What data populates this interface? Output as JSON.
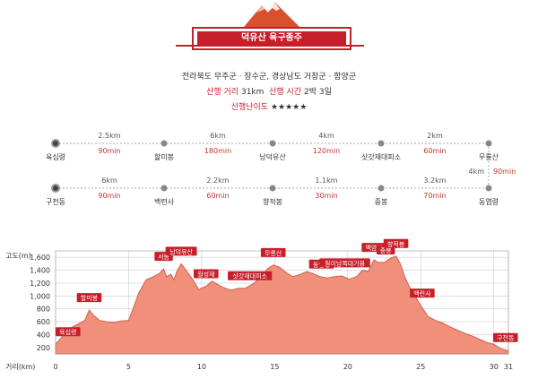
{
  "header": {
    "title": "덕유산 육구종주",
    "region": "전라북도 무주군 · 장수군, 경상남도 거창군 · 함양군",
    "distance_label": "산행 거리",
    "distance_value": "31km",
    "time_label": "산행 시간",
    "time_value": "2박 3일",
    "difficulty_label": "산행난이도",
    "difficulty_stars": "★★★★★"
  },
  "route": {
    "row1": {
      "points": [
        "육십령",
        "할미봉",
        "남덕유산",
        "삿갓재대피소",
        "무룡산"
      ],
      "distances": [
        "2.5km",
        "6km",
        "4km",
        "2km"
      ],
      "times": [
        "90min",
        "180min",
        "120min",
        "60min"
      ]
    },
    "connector": {
      "distance": "4km",
      "time": "90min"
    },
    "row2": {
      "points": [
        "구천동",
        "백련사",
        "향적봉",
        "중봉",
        "동엽령"
      ],
      "distances": [
        "6km",
        "2.2km",
        "1.1km",
        "3.2km"
      ],
      "times": [
        "90min",
        "60min",
        "30min",
        "70min"
      ]
    }
  },
  "chart_data": {
    "type": "area",
    "ylabel": "고도(m)",
    "xlabel": "거리(km)",
    "ylim": [
      0,
      1700
    ],
    "xlim": [
      0,
      31
    ],
    "yticks": [
      "200",
      "400",
      "600",
      "800",
      "1,000",
      "1,200",
      "1,400",
      "1,600"
    ],
    "xticks": [
      "0",
      "5",
      "10",
      "15",
      "20",
      "25",
      "30",
      "31"
    ],
    "grid": true,
    "profile": [
      [
        0,
        250
      ],
      [
        0.5,
        380
      ],
      [
        1,
        500
      ],
      [
        1.5,
        560
      ],
      [
        2,
        620
      ],
      [
        2.3,
        780
      ],
      [
        2.6,
        700
      ],
      [
        3,
        620
      ],
      [
        3.5,
        600
      ],
      [
        4,
        590
      ],
      [
        4.5,
        610
      ],
      [
        5,
        620
      ],
      [
        5.3,
        800
      ],
      [
        5.7,
        1050
      ],
      [
        6.2,
        1250
      ],
      [
        6.7,
        1300
      ],
      [
        7.1,
        1350
      ],
      [
        7.4,
        1420
      ],
      [
        7.6,
        1300
      ],
      [
        7.9,
        1340
      ],
      [
        8.1,
        1250
      ],
      [
        8.3,
        1380
      ],
      [
        8.6,
        1500
      ],
      [
        9,
        1380
      ],
      [
        9.4,
        1250
      ],
      [
        9.8,
        1100
      ],
      [
        10.3,
        1150
      ],
      [
        10.7,
        1230
      ],
      [
        11.1,
        1180
      ],
      [
        11.5,
        1130
      ],
      [
        12,
        1090
      ],
      [
        12.5,
        1120
      ],
      [
        13,
        1120
      ],
      [
        13.6,
        1200
      ],
      [
        14.1,
        1300
      ],
      [
        14.5,
        1420
      ],
      [
        14.9,
        1480
      ],
      [
        15.3,
        1450
      ],
      [
        15.7,
        1380
      ],
      [
        16.2,
        1300
      ],
      [
        16.7,
        1330
      ],
      [
        17.2,
        1380
      ],
      [
        17.6,
        1350
      ],
      [
        18.1,
        1300
      ],
      [
        18.6,
        1280
      ],
      [
        19.1,
        1300
      ],
      [
        19.6,
        1310
      ],
      [
        20.1,
        1260
      ],
      [
        20.6,
        1300
      ],
      [
        21,
        1400
      ],
      [
        21.4,
        1380
      ],
      [
        21.8,
        1560
      ],
      [
        22.1,
        1520
      ],
      [
        22.5,
        1520
      ],
      [
        22.9,
        1580
      ],
      [
        23.3,
        1620
      ],
      [
        23.6,
        1500
      ],
      [
        23.9,
        1300
      ],
      [
        24.2,
        1150
      ],
      [
        24.6,
        1000
      ],
      [
        25,
        850
      ],
      [
        25.5,
        680
      ],
      [
        26,
        620
      ],
      [
        26.5,
        580
      ],
      [
        27,
        520
      ],
      [
        27.5,
        470
      ],
      [
        28,
        420
      ],
      [
        28.5,
        380
      ],
      [
        29,
        330
      ],
      [
        29.5,
        280
      ],
      [
        30,
        250
      ],
      [
        30.5,
        180
      ],
      [
        31,
        150
      ]
    ],
    "annotations": [
      {
        "label": "육십령",
        "x": 0,
        "y": 250
      },
      {
        "label": "할미봉",
        "x": 2.3,
        "y": 780
      },
      {
        "label": "서봉",
        "x": 7.4,
        "y": 1420
      },
      {
        "label": "남덕유산",
        "x": 8.6,
        "y": 1500
      },
      {
        "label": "월성재",
        "x": 10.3,
        "y": 1150
      },
      {
        "label": "삿갓재대피소",
        "x": 13.3,
        "y": 1120
      },
      {
        "label": "무룡산",
        "x": 14.9,
        "y": 1480
      },
      {
        "label": "동엽령",
        "x": 18.2,
        "y": 1300
      },
      {
        "label": "칠이남쪽대기봉",
        "x": 19.8,
        "y": 1320
      },
      {
        "label": "백암봉",
        "x": 21.8,
        "y": 1560
      },
      {
        "label": "중봉",
        "x": 22.6,
        "y": 1520
      },
      {
        "label": "향적봉",
        "x": 23.3,
        "y": 1620
      },
      {
        "label": "백련사",
        "x": 25.1,
        "y": 850
      },
      {
        "label": "구천동",
        "x": 30.8,
        "y": 160
      }
    ],
    "colors": {
      "fill": "#f0907a",
      "stroke": "#d0604e",
      "label_bg": "#c81e2a",
      "grid": "#cccccc"
    }
  }
}
